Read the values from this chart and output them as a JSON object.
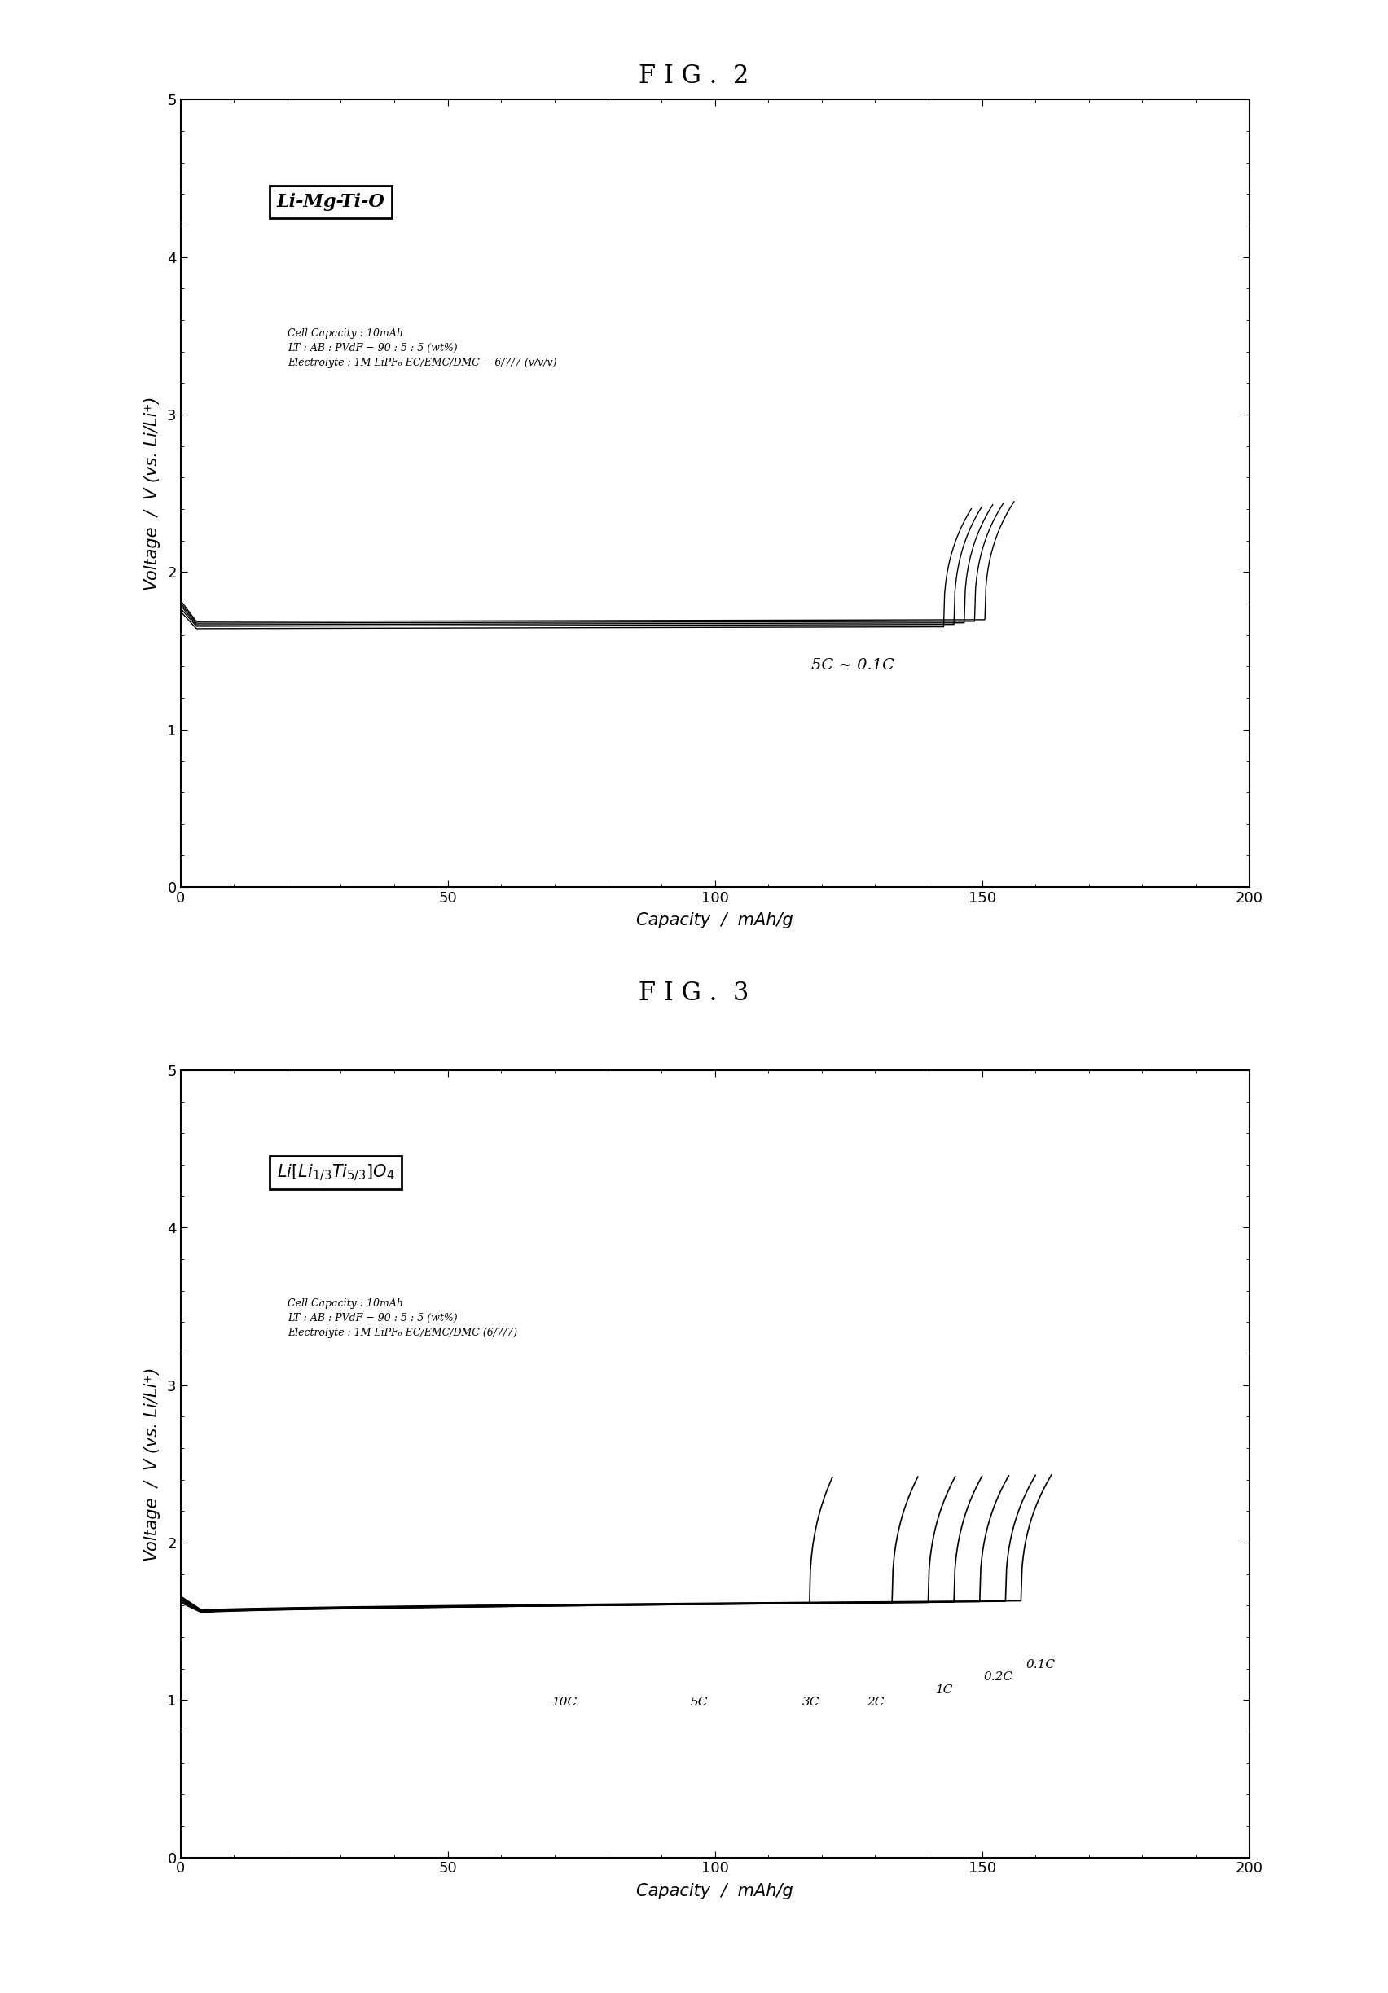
{
  "fig2_title": "F I G .  2",
  "fig3_title": "F I G .  3",
  "xlabel": "Capacity  /  mAh/g",
  "ylabel": "Voltage  /  V (vs. Li/Li⁺)",
  "xlim": [
    0,
    200
  ],
  "ylim": [
    0,
    5
  ],
  "xticks": [
    0,
    50,
    100,
    150,
    200
  ],
  "yticks": [
    0,
    1,
    2,
    3,
    4,
    5
  ],
  "fig2_label": "Li-Mg-Ti-O",
  "fig2_annotation": "5C ~ 0.1C",
  "fig2_info": "Cell Capacity : 10mAh\nLT : AB : PVdF − 90 : 5 : 5 (wt%)\nElectrolyte : 1M LiPF₆ EC/EMC/DMC − 6/7/7 (v/v/v)",
  "fig3_info": "Cell Capacity : 10mAh\nLT : AB : PVdF − 90 : 5 : 5 (wt%)\nElectrolyte : 1M LiPF₆ EC/EMC/DMC (6/7/7)",
  "fig3_curve_labels": [
    "10C",
    "5C",
    "3C",
    "2C",
    "1C",
    "0.2C",
    "0.1C"
  ],
  "background_color": "#ffffff",
  "line_color": "#000000",
  "title_fontsize": 22,
  "label_fontsize": 15,
  "tick_fontsize": 13,
  "annotation_fontsize": 14,
  "info_fontsize": 9
}
